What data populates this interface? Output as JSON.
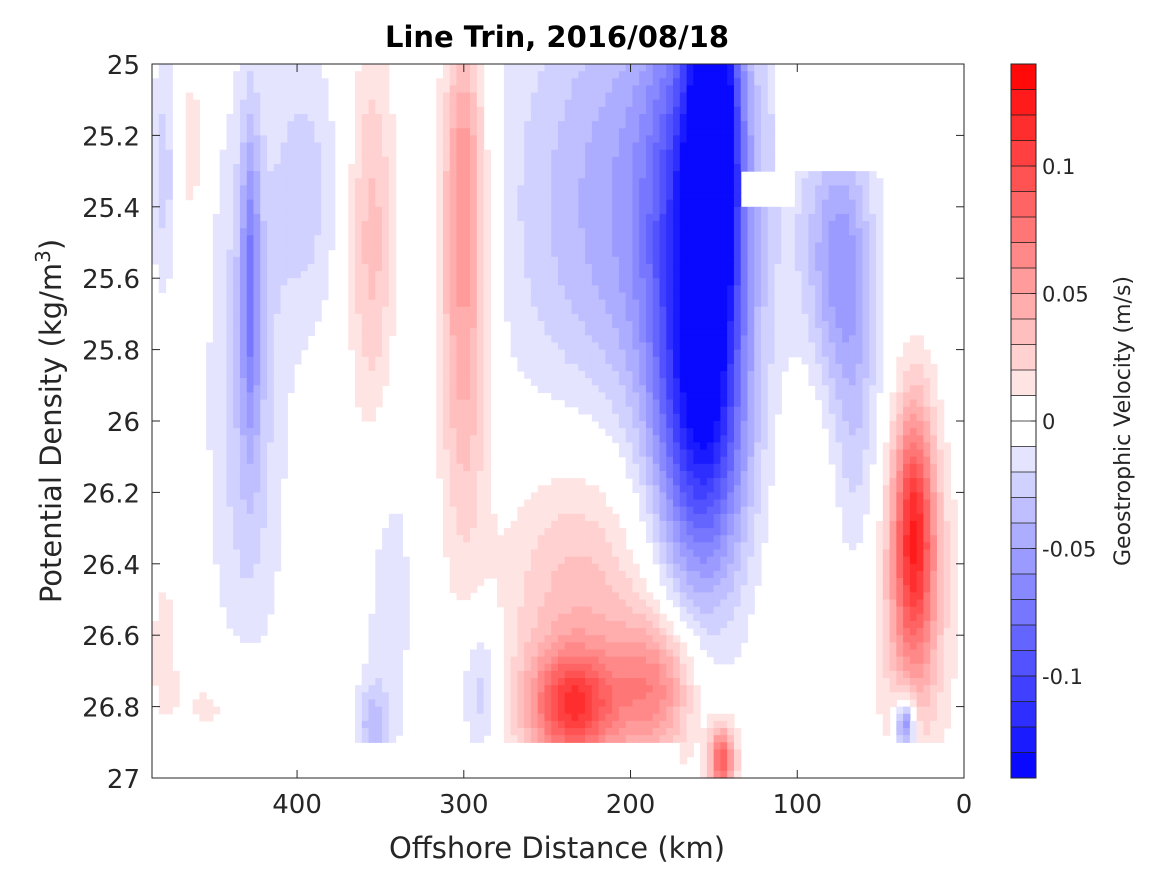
{
  "chart_data": {
    "type": "heatmap",
    "title": "Line Trin, 2016/08/18",
    "xlabel": "Offshore Distance (km)",
    "ylabel_main": "Potential Density (kg/m",
    "ylabel_sup": "3",
    "ylabel_close": ")",
    "x_reversed": true,
    "y_reversed": true,
    "xlim": [
      0,
      487
    ],
    "ylim": [
      25,
      27
    ],
    "x_ticks": [
      400,
      300,
      200,
      100,
      0
    ],
    "x_tick_labels": [
      "400",
      "300",
      "200",
      "100",
      "0"
    ],
    "y_ticks": [
      25,
      25.2,
      25.4,
      25.6,
      25.8,
      26,
      26.2,
      26.4,
      26.6,
      26.8,
      27
    ],
    "y_tick_labels": [
      "25",
      "25.2",
      "25.4",
      "25.6",
      "25.8",
      "26",
      "26.2",
      "26.4",
      "26.6",
      "26.8",
      "27"
    ],
    "grid": false,
    "colorbar": {
      "label": "Geostrophic Velocity (m/s)",
      "min": -0.14,
      "max": 0.14,
      "levels": 28,
      "min_color": "#0000ff",
      "mid_color": "#ffffff",
      "max_color": "#ff0000",
      "ticks": [
        0.1,
        0.05,
        0,
        -0.05,
        -0.1
      ],
      "tick_labels": [
        "0.1",
        "0.05",
        "0",
        "-0.05",
        "-0.1"
      ]
    },
    "features": [
      {
        "kind": "blob",
        "x": 480,
        "y": 25.3,
        "rx": 8,
        "ry": 0.35,
        "v": -0.025
      },
      {
        "kind": "blob",
        "x": 463,
        "y": 25.25,
        "rx": 8,
        "ry": 0.35,
        "v": 0.015
      },
      {
        "kind": "blob",
        "x": 430,
        "y": 25.9,
        "rx": 22,
        "ry": 0.8,
        "v": -0.03
      },
      {
        "kind": "blob",
        "x": 428,
        "y": 25.6,
        "rx": 6,
        "ry": 0.45,
        "v": -0.05
      },
      {
        "kind": "blob",
        "x": 395,
        "y": 25.35,
        "rx": 20,
        "ry": 0.4,
        "v": -0.025
      },
      {
        "kind": "blob",
        "x": 355,
        "y": 25.5,
        "rx": 14,
        "ry": 0.55,
        "v": 0.035
      },
      {
        "kind": "blob",
        "x": 300,
        "y": 25.6,
        "rx": 15,
        "ry": 0.7,
        "v": 0.055
      },
      {
        "kind": "blob",
        "x": 300,
        "y": 25.25,
        "rx": 10,
        "ry": 0.3,
        "v": 0.02
      },
      {
        "kind": "blob",
        "x": 345,
        "y": 26.5,
        "rx": 18,
        "ry": 0.55,
        "v": -0.015
      },
      {
        "kind": "blob",
        "x": 290,
        "y": 26.75,
        "rx": 12,
        "ry": 0.2,
        "v": -0.03
      },
      {
        "kind": "blob",
        "x": 355,
        "y": 26.85,
        "rx": 10,
        "ry": 0.12,
        "v": -0.03
      },
      {
        "kind": "blob",
        "x": 195,
        "y": 25.4,
        "rx": 75,
        "ry": 0.7,
        "v": -0.05
      },
      {
        "kind": "blob",
        "x": 160,
        "y": 25.6,
        "rx": 28,
        "ry": 0.8,
        "v": -0.09
      },
      {
        "kind": "blob",
        "x": 150,
        "y": 25.2,
        "rx": 14,
        "ry": 0.5,
        "v": -0.13
      },
      {
        "kind": "blob",
        "x": 155,
        "y": 26.05,
        "rx": 25,
        "ry": 0.4,
        "v": -0.05
      },
      {
        "kind": "blob",
        "x": 230,
        "y": 26.55,
        "rx": 45,
        "ry": 0.5,
        "v": 0.04
      },
      {
        "kind": "blob",
        "x": 235,
        "y": 26.8,
        "rx": 25,
        "ry": 0.15,
        "v": 0.085
      },
      {
        "kind": "blob",
        "x": 185,
        "y": 26.75,
        "rx": 25,
        "ry": 0.2,
        "v": 0.06
      },
      {
        "kind": "blob",
        "x": 145,
        "y": 26.95,
        "rx": 8,
        "ry": 0.1,
        "v": 0.09
      },
      {
        "kind": "blob",
        "x": 30,
        "y": 26.3,
        "rx": 12,
        "ry": 0.35,
        "v": 0.09
      },
      {
        "kind": "blob",
        "x": 30,
        "y": 26.5,
        "rx": 22,
        "ry": 0.45,
        "v": 0.04
      },
      {
        "kind": "blob",
        "x": 75,
        "y": 25.55,
        "rx": 20,
        "ry": 0.35,
        "v": -0.05
      },
      {
        "kind": "blob",
        "x": 65,
        "y": 26.0,
        "rx": 15,
        "ry": 0.45,
        "v": -0.025
      },
      {
        "kind": "blob",
        "x": 35,
        "y": 26.85,
        "rx": 6,
        "ry": 0.08,
        "v": -0.08
      },
      {
        "kind": "blob",
        "x": 95,
        "y": 26.3,
        "rx": 18,
        "ry": 0.5,
        "v": 0.012
      },
      {
        "kind": "blob",
        "x": 440,
        "y": 26.8,
        "rx": 40,
        "ry": 0.15,
        "v": 0.015
      },
      {
        "kind": "blob",
        "x": 480,
        "y": 26.6,
        "rx": 8,
        "ry": 0.2,
        "v": 0.015
      }
    ],
    "masks": [
      {
        "x0": 487,
        "x1": 0,
        "y0": 26.9,
        "y1": 27.0,
        "except_x": [
          170,
          0
        ]
      },
      {
        "x0": 115,
        "x1": 45,
        "y0": 25.0,
        "y1": 25.3
      },
      {
        "x0": 135,
        "x1": 100,
        "y0": 25.3,
        "y1": 25.4
      },
      {
        "x0": 45,
        "x1": 0,
        "y0": 26.9,
        "y1": 27.0
      }
    ]
  }
}
